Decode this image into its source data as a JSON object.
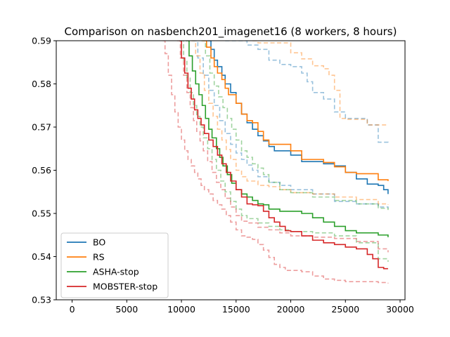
{
  "chart_data": {
    "type": "line",
    "title": "Comparison on nasbench201_imagenet16 (8 workers, 8 hours)",
    "xlabel": "",
    "ylabel": "",
    "xlim": [
      -1450,
      30450
    ],
    "ylim": [
      0.53,
      0.59
    ],
    "xticks": [
      0,
      5000,
      10000,
      15000,
      20000,
      25000,
      30000
    ],
    "yticks": [
      0.53,
      0.54,
      0.55,
      0.56,
      0.57,
      0.58,
      0.59
    ],
    "xtick_labels": [
      "0",
      "5000",
      "10000",
      "15000",
      "20000",
      "25000",
      "30000"
    ],
    "ytick_labels": [
      "0.53",
      "0.54",
      "0.55",
      "0.56",
      "0.57",
      "0.58",
      "0.59"
    ],
    "grid": false,
    "legend_position": "lower-left",
    "series": [
      {
        "name": "BO",
        "role": "mean",
        "color": "#1f77b4",
        "x": [
          12400,
          12700,
          13000,
          13300,
          13700,
          14000,
          14500,
          15000,
          15500,
          16000,
          16500,
          17000,
          17500,
          18000,
          18500,
          19000,
          20000,
          21000,
          22000,
          23000,
          24000,
          25000,
          26000,
          27000,
          28000,
          28500,
          28900
        ],
        "y": [
          0.59,
          0.588,
          0.5855,
          0.584,
          0.582,
          0.58,
          0.578,
          0.5755,
          0.573,
          0.571,
          0.5695,
          0.568,
          0.5668,
          0.5655,
          0.5645,
          0.5645,
          0.5635,
          0.562,
          0.562,
          0.5615,
          0.561,
          0.5595,
          0.558,
          0.5568,
          0.5565,
          0.5555,
          0.5545
        ]
      },
      {
        "name": "RS",
        "role": "mean",
        "color": "#ff7f0e",
        "x": [
          11900,
          12300,
          12700,
          13000,
          13300,
          13700,
          14000,
          14300,
          14700,
          15000,
          15500,
          16000,
          16500,
          17000,
          17500,
          18000,
          19000,
          20000,
          21000,
          22000,
          23000,
          24000,
          25000,
          26000,
          27000,
          28000,
          28900
        ],
        "y": [
          0.59,
          0.5885,
          0.586,
          0.584,
          0.5825,
          0.581,
          0.579,
          0.5775,
          0.5775,
          0.5755,
          0.573,
          0.5715,
          0.571,
          0.569,
          0.567,
          0.566,
          0.566,
          0.5645,
          0.5625,
          0.5625,
          0.5618,
          0.5608,
          0.5595,
          0.5592,
          0.5592,
          0.5578,
          0.5575
        ]
      },
      {
        "name": "ASHA-stop",
        "role": "mean",
        "color": "#2ca02c",
        "x": [
          10400,
          10700,
          11000,
          11300,
          11600,
          11900,
          12200,
          12500,
          12800,
          13200,
          13500,
          13800,
          14200,
          14600,
          15000,
          15500,
          16000,
          16500,
          17000,
          17500,
          18000,
          19000,
          20000,
          21000,
          22000,
          23000,
          24000,
          25000,
          26000,
          27000,
          28000,
          28500,
          28900
        ],
        "y": [
          0.59,
          0.5865,
          0.583,
          0.58,
          0.5775,
          0.575,
          0.572,
          0.5695,
          0.5675,
          0.565,
          0.563,
          0.561,
          0.559,
          0.557,
          0.5555,
          0.5545,
          0.5538,
          0.553,
          0.5522,
          0.552,
          0.551,
          0.5505,
          0.5505,
          0.55,
          0.549,
          0.548,
          0.547,
          0.546,
          0.5455,
          0.5455,
          0.545,
          0.545,
          0.5445
        ]
      },
      {
        "name": "MOBSTER-stop",
        "role": "mean",
        "color": "#d62728",
        "x": [
          9800,
          10000,
          10300,
          10600,
          10900,
          11200,
          11500,
          11800,
          12100,
          12500,
          12900,
          13300,
          13700,
          14100,
          14500,
          15000,
          15500,
          16000,
          16500,
          17000,
          17500,
          18000,
          18500,
          19000,
          19500,
          20000,
          21000,
          22000,
          23000,
          24000,
          25000,
          26000,
          27000,
          27500,
          28000,
          28500,
          28900
        ],
        "y": [
          0.59,
          0.586,
          0.5825,
          0.579,
          0.5765,
          0.574,
          0.572,
          0.5705,
          0.5685,
          0.567,
          0.5655,
          0.5635,
          0.5615,
          0.5595,
          0.5575,
          0.5555,
          0.5538,
          0.5522,
          0.552,
          0.5518,
          0.5505,
          0.549,
          0.548,
          0.547,
          0.546,
          0.5458,
          0.5448,
          0.5438,
          0.5432,
          0.5428,
          0.5422,
          0.5418,
          0.5405,
          0.5395,
          0.5375,
          0.5372,
          0.5372
        ]
      },
      {
        "name": "",
        "role": "quantile",
        "color": "#1f77b4",
        "x": [
          14000,
          16000,
          17000,
          18000,
          19000,
          20000,
          21000,
          21500,
          22000,
          23000,
          24000,
          25000,
          26000,
          27000,
          28000,
          28900
        ],
        "y": [
          0.59,
          0.589,
          0.588,
          0.5855,
          0.5845,
          0.584,
          0.5825,
          0.5805,
          0.578,
          0.5765,
          0.5735,
          0.572,
          0.572,
          0.5705,
          0.5665,
          0.5662
        ]
      },
      {
        "name": "",
        "role": "quantile",
        "color": "#1f77b4",
        "x": [
          11000,
          11500,
          12000,
          12500,
          13000,
          13500,
          14000,
          14500,
          15000,
          15500,
          16000,
          16500,
          17000,
          18000,
          19000,
          20000,
          22000,
          24000,
          26000,
          28000,
          28900
        ],
        "y": [
          0.59,
          0.586,
          0.582,
          0.5785,
          0.575,
          0.5715,
          0.5685,
          0.566,
          0.564,
          0.5625,
          0.5612,
          0.56,
          0.5585,
          0.5572,
          0.5565,
          0.5555,
          0.5545,
          0.5528,
          0.5522,
          0.5515,
          0.5512
        ]
      },
      {
        "name": "",
        "role": "quantile",
        "color": "#ff7f0e",
        "x": [
          16500,
          17000,
          18000,
          19000,
          20000,
          21000,
          22000,
          23000,
          23500,
          24000,
          24500,
          25000,
          26000,
          27000,
          28000,
          28900
        ],
        "y": [
          0.59,
          0.5895,
          0.5895,
          0.5895,
          0.5872,
          0.5858,
          0.5842,
          0.5835,
          0.582,
          0.5785,
          0.572,
          0.5718,
          0.5718,
          0.5705,
          0.5705,
          0.5705
        ]
      },
      {
        "name": "",
        "role": "quantile",
        "color": "#ff7f0e",
        "x": [
          10900,
          11300,
          11700,
          12100,
          12500,
          12900,
          13300,
          13700,
          14100,
          14500,
          15000,
          15500,
          16000,
          17000,
          18000,
          19000,
          20000,
          22000,
          24000,
          26000,
          28000,
          28900
        ],
        "y": [
          0.59,
          0.5865,
          0.5825,
          0.5785,
          0.5755,
          0.5725,
          0.5695,
          0.567,
          0.5648,
          0.5625,
          0.56,
          0.5585,
          0.5575,
          0.5565,
          0.5562,
          0.5555,
          0.5548,
          0.5545,
          0.5538,
          0.5532,
          0.5522,
          0.552
        ]
      },
      {
        "name": "",
        "role": "quantile",
        "color": "#2ca02c",
        "x": [
          11800,
          12200,
          12600,
          13000,
          13400,
          13800,
          14200,
          14600,
          15000,
          15500,
          16000,
          16500,
          17000,
          17500,
          18000,
          19000,
          20000,
          22000,
          24000,
          26000,
          28000,
          28900
        ],
        "y": [
          0.59,
          0.5865,
          0.5825,
          0.5795,
          0.577,
          0.5745,
          0.572,
          0.5695,
          0.567,
          0.5645,
          0.563,
          0.5615,
          0.5605,
          0.559,
          0.5572,
          0.5555,
          0.5548,
          0.5538,
          0.553,
          0.5522,
          0.5512,
          0.5508
        ]
      },
      {
        "name": "",
        "role": "quantile",
        "color": "#2ca02c",
        "x": [
          9900,
          10200,
          10500,
          10800,
          11100,
          11400,
          11700,
          12000,
          12400,
          12800,
          13200,
          13600,
          14000,
          14500,
          15000,
          15500,
          16000,
          17000,
          18000,
          19000,
          20000,
          22000,
          24000,
          26000,
          28000,
          28900
        ],
        "y": [
          0.59,
          0.5855,
          0.5815,
          0.578,
          0.575,
          0.5725,
          0.57,
          0.5675,
          0.565,
          0.5625,
          0.56,
          0.5575,
          0.555,
          0.5528,
          0.551,
          0.5495,
          0.5488,
          0.5478,
          0.547,
          0.5462,
          0.5458,
          0.5455,
          0.5448,
          0.5432,
          0.5395,
          0.5388
        ]
      },
      {
        "name": "",
        "role": "quantile",
        "color": "#d62728",
        "x": [
          9600,
          9900,
          10200,
          10500,
          10800,
          11100,
          11400,
          11700,
          12000,
          12400,
          12800,
          13200,
          13600,
          14000,
          14500,
          15000,
          15500,
          16000,
          17000,
          18000,
          19000,
          20000,
          22000,
          24000,
          26000,
          28000,
          28900
        ],
        "y": [
          0.59,
          0.586,
          0.582,
          0.578,
          0.5745,
          0.5715,
          0.569,
          0.5668,
          0.5645,
          0.562,
          0.5595,
          0.5572,
          0.5555,
          0.5535,
          0.5515,
          0.5495,
          0.5482,
          0.5478,
          0.5468,
          0.5462,
          0.5455,
          0.5448,
          0.5445,
          0.5442,
          0.5435,
          0.5418,
          0.541
        ]
      },
      {
        "name": "",
        "role": "quantile",
        "color": "#d62728",
        "x": [
          8300,
          8500,
          8800,
          9100,
          9400,
          9700,
          10000,
          10300,
          10600,
          10900,
          11200,
          11500,
          11800,
          12100,
          12500,
          12900,
          13300,
          13700,
          14100,
          14500,
          15000,
          15500,
          16000,
          16500,
          17000,
          17500,
          18000,
          18500,
          19000,
          19500,
          20000,
          21000,
          22000,
          23000,
          24000,
          25000,
          26000,
          27000,
          28000,
          28900
        ],
        "y": [
          0.59,
          0.587,
          0.582,
          0.5775,
          0.5735,
          0.57,
          0.567,
          0.5645,
          0.5625,
          0.561,
          0.5595,
          0.558,
          0.5565,
          0.5555,
          0.5545,
          0.553,
          0.552,
          0.551,
          0.5495,
          0.548,
          0.5462,
          0.5448,
          0.5445,
          0.544,
          0.5428,
          0.5415,
          0.5398,
          0.5382,
          0.5375,
          0.5368,
          0.5368,
          0.5365,
          0.5355,
          0.5348,
          0.5345,
          0.5342,
          0.5342,
          0.5342,
          0.534,
          0.5338
        ]
      }
    ]
  }
}
